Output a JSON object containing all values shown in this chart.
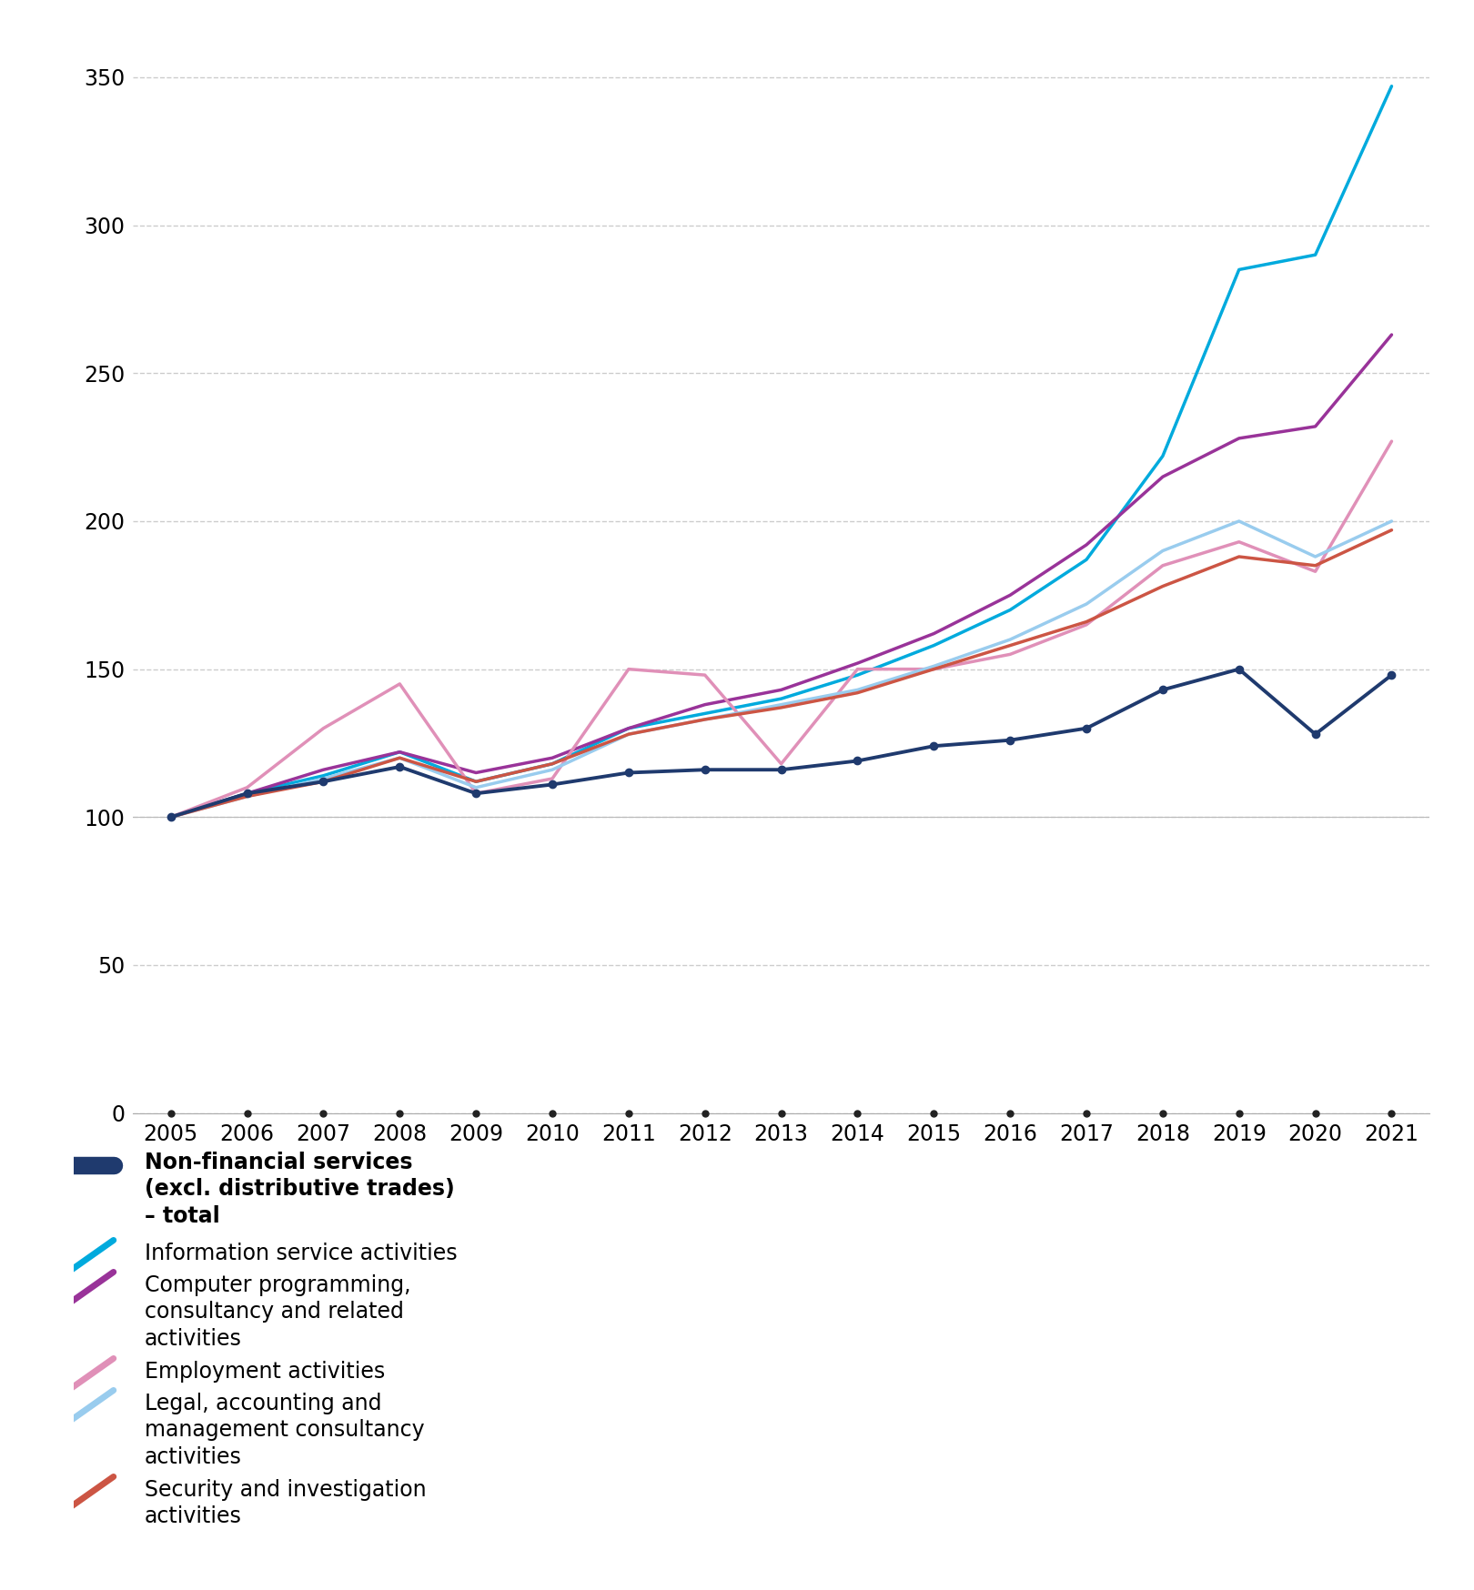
{
  "years": [
    2005,
    2006,
    2007,
    2008,
    2009,
    2010,
    2011,
    2012,
    2013,
    2014,
    2015,
    2016,
    2017,
    2018,
    2019,
    2020,
    2021
  ],
  "series": [
    {
      "key": "non_financial",
      "label_lines": [
        "Non-financial services",
        "(excl. distributive trades)",
        "– total"
      ],
      "color": "#1f3a6e",
      "linewidth": 2.8,
      "marker": "o",
      "markersize": 6,
      "bold": true,
      "values": [
        100,
        108,
        112,
        117,
        108,
        111,
        115,
        116,
        116,
        119,
        124,
        126,
        130,
        143,
        150,
        128,
        148
      ]
    },
    {
      "key": "information_service",
      "label_lines": [
        "Information service activities"
      ],
      "color": "#00aadd",
      "linewidth": 2.5,
      "marker": null,
      "bold": false,
      "values": [
        100,
        108,
        114,
        122,
        112,
        118,
        130,
        135,
        140,
        148,
        158,
        170,
        187,
        222,
        285,
        290,
        347
      ]
    },
    {
      "key": "computer_programming",
      "label_lines": [
        "Computer programming,",
        "consultancy and related",
        "activities"
      ],
      "color": "#993399",
      "linewidth": 2.5,
      "marker": null,
      "bold": false,
      "values": [
        100,
        108,
        116,
        122,
        115,
        120,
        130,
        138,
        143,
        152,
        162,
        175,
        192,
        215,
        228,
        232,
        263
      ]
    },
    {
      "key": "employment",
      "label_lines": [
        "Employment activities"
      ],
      "color": "#e090b8",
      "linewidth": 2.5,
      "marker": null,
      "bold": false,
      "values": [
        100,
        110,
        130,
        145,
        108,
        113,
        150,
        148,
        118,
        150,
        150,
        155,
        165,
        185,
        193,
        183,
        227
      ]
    },
    {
      "key": "legal_accounting",
      "label_lines": [
        "Legal, accounting and",
        "management consultancy",
        "activities"
      ],
      "color": "#99ccee",
      "linewidth": 2.5,
      "marker": null,
      "bold": false,
      "values": [
        100,
        107,
        113,
        120,
        110,
        116,
        128,
        133,
        138,
        143,
        151,
        160,
        172,
        190,
        200,
        188,
        200
      ]
    },
    {
      "key": "security",
      "label_lines": [
        "Security and investigation",
        "activities"
      ],
      "color": "#cc5544",
      "linewidth": 2.5,
      "marker": null,
      "bold": false,
      "values": [
        100,
        107,
        112,
        120,
        112,
        118,
        128,
        133,
        137,
        142,
        150,
        158,
        166,
        178,
        188,
        185,
        197
      ]
    }
  ],
  "ylim": [
    0,
    360
  ],
  "yticks": [
    0,
    50,
    100,
    150,
    200,
    250,
    300,
    350
  ],
  "background_color": "#ffffff",
  "grid_color": "#cccccc"
}
